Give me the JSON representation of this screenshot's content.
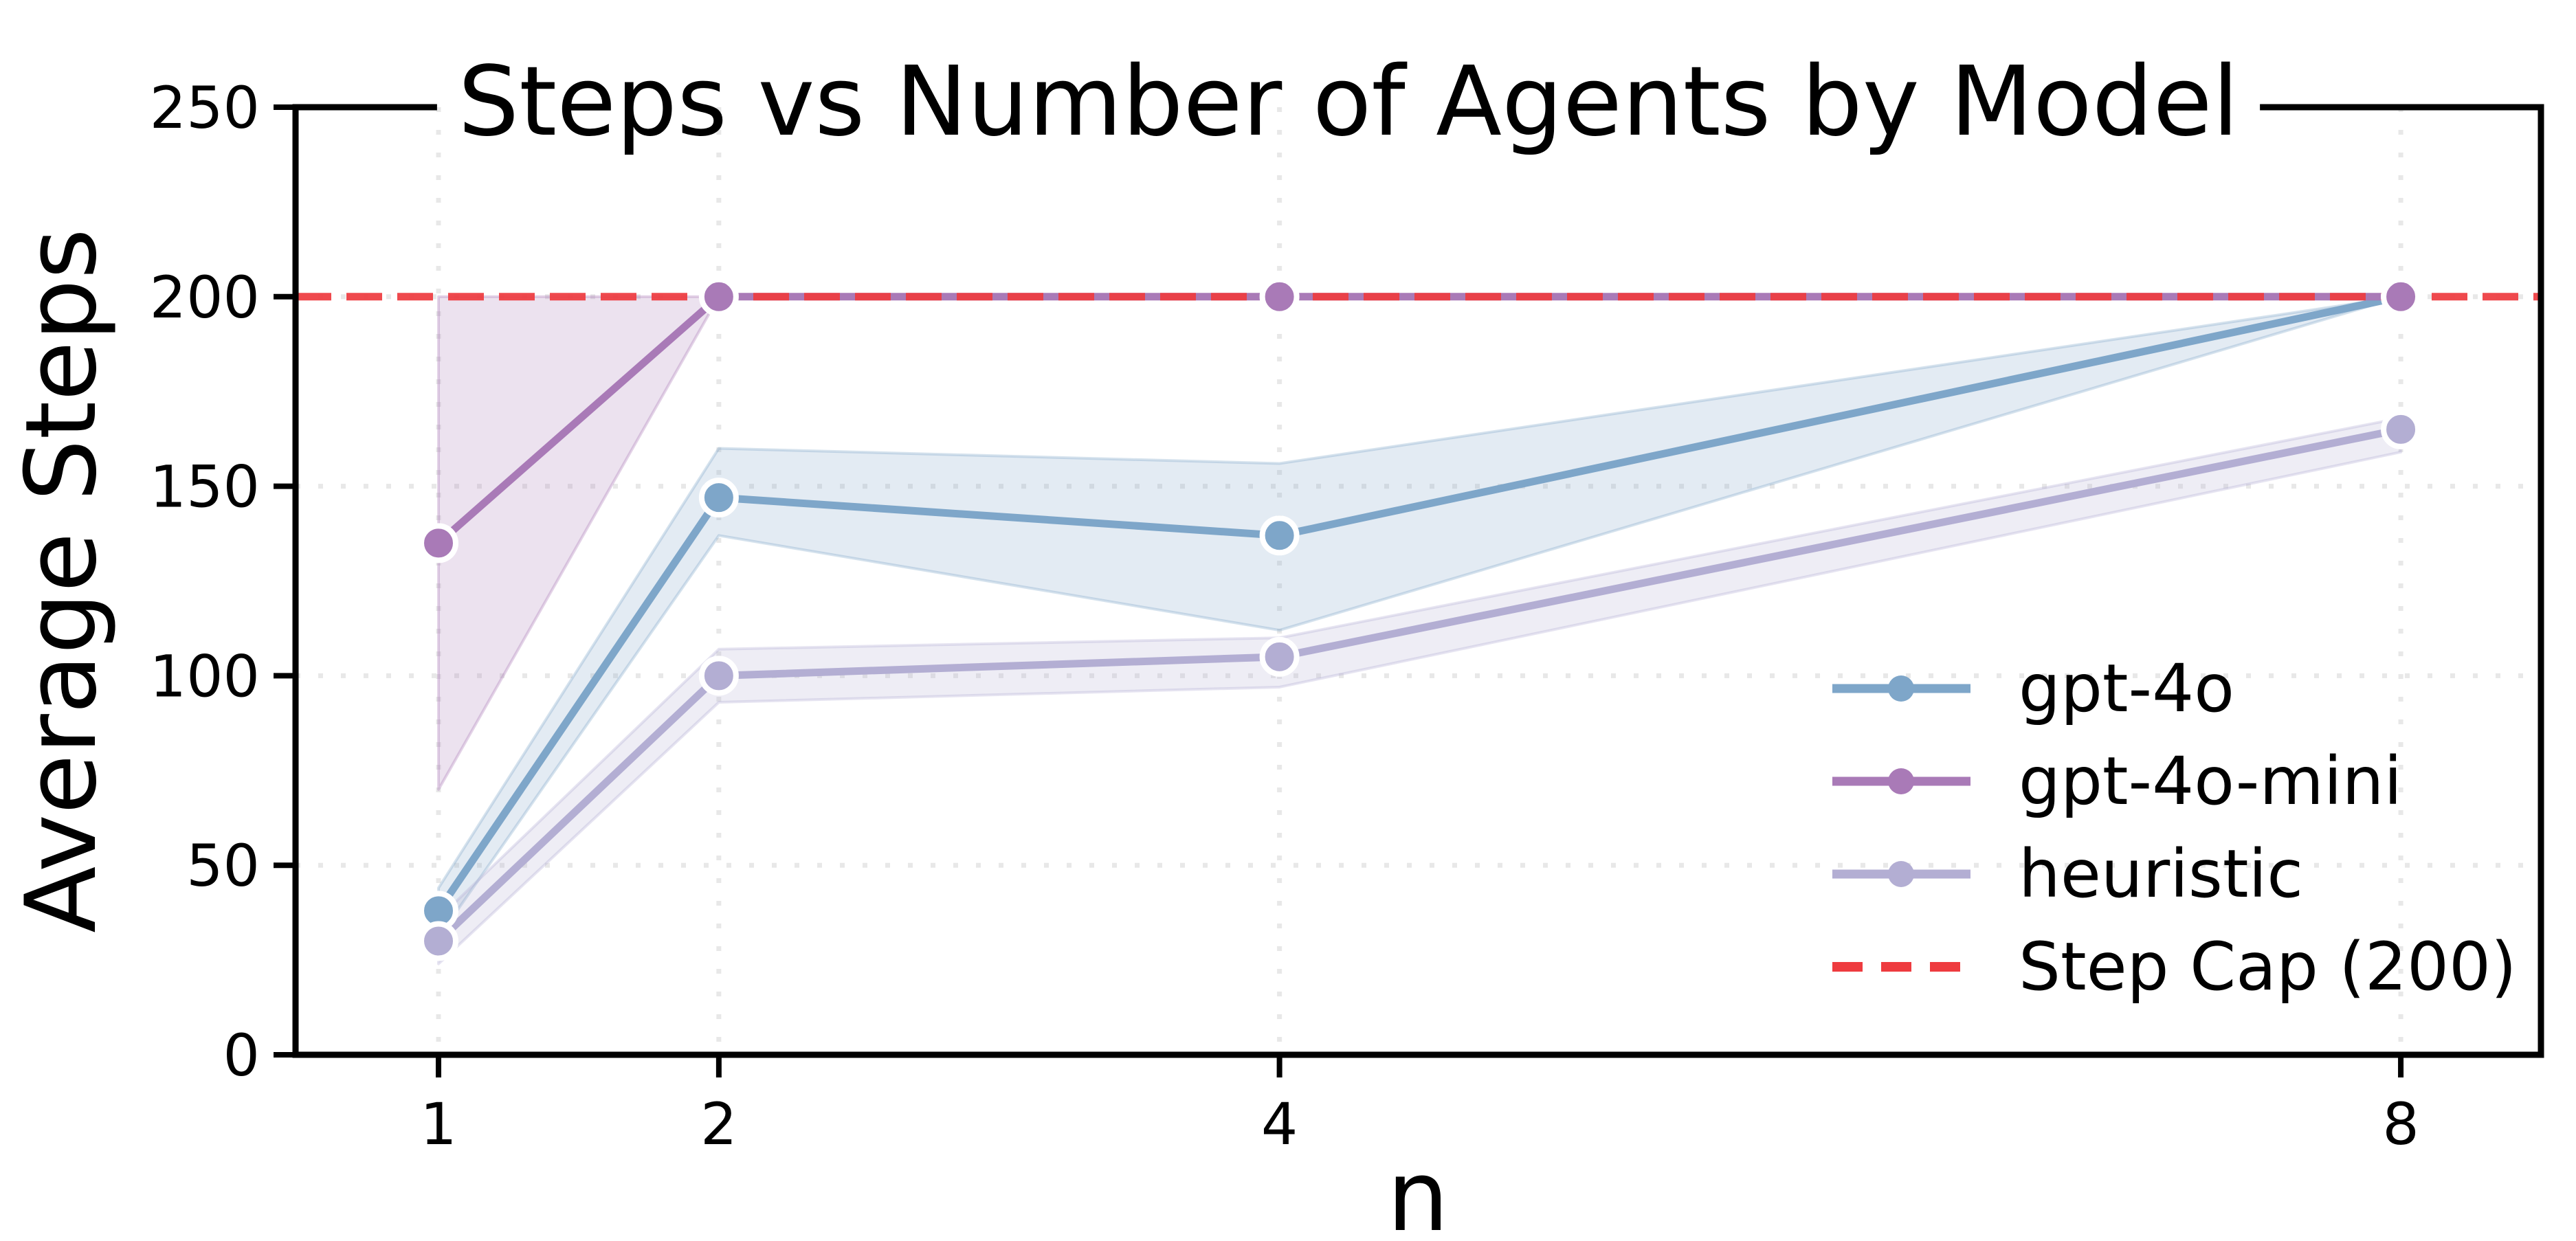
{
  "chart_data": {
    "type": "line",
    "title": "Steps vs Number of Agents by Model",
    "xlabel": "n",
    "ylabel": "Average Steps",
    "x": [
      1,
      2,
      4,
      8
    ],
    "xtick_labels": [
      "1",
      "2",
      "4",
      "8"
    ],
    "yticks": [
      0,
      50,
      100,
      150,
      200,
      250
    ],
    "ytick_labels": [
      "0",
      "50",
      "100",
      "150",
      "200",
      "250"
    ],
    "xlim": [
      0.49,
      8.5
    ],
    "ylim": [
      0,
      250
    ],
    "grid": true,
    "grid_style": "dotted",
    "series": [
      {
        "name": "gpt-4o",
        "color": "#7ea6c9",
        "values": [
          38,
          147,
          137,
          200
        ],
        "band_low": [
          31,
          137,
          112,
          200
        ],
        "band_high": [
          44,
          160,
          156,
          200
        ]
      },
      {
        "name": "gpt-4o-mini",
        "color": "#a97ab7",
        "values": [
          135,
          200,
          200,
          200
        ],
        "band_low": [
          70,
          200,
          200,
          200
        ],
        "band_high": [
          200,
          200,
          200,
          200
        ]
      },
      {
        "name": "heuristic",
        "color": "#b3aed3",
        "values": [
          30,
          100,
          105,
          165
        ],
        "band_low": [
          24,
          93,
          97,
          159
        ],
        "band_high": [
          36,
          107,
          110,
          168
        ]
      }
    ],
    "reference_line": {
      "label": "Step Cap (200)",
      "value": 200,
      "color": "#ee3b3f",
      "style": "dashed"
    },
    "legend": {
      "location": "lower-right-inside",
      "entries": [
        "gpt-4o",
        "gpt-4o-mini",
        "heuristic",
        "Step Cap (200)"
      ]
    },
    "colors": {
      "grid": "#e8e8e8",
      "axis": "#000000",
      "background": "#ffffff",
      "marker_edge": "#ffffff"
    }
  }
}
